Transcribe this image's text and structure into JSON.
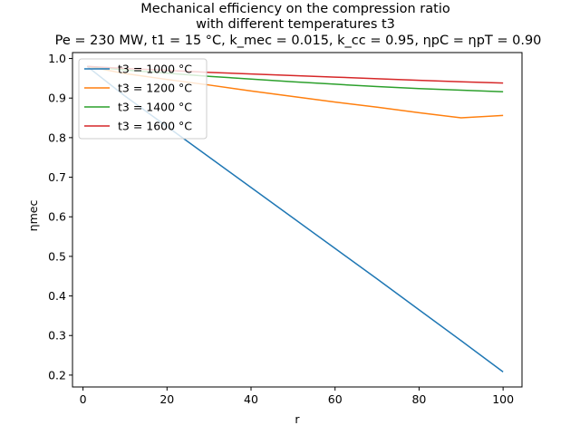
{
  "chart_data": {
    "type": "line",
    "title_lines": [
      "Mechanical efficiency on the compression ratio",
      "with different temperatures t3",
      "Pe = 230 MW, t1 = 15 °C, k_mec = 0.015, k_cc = 0.95, ηpC = ηpT = 0.90"
    ],
    "xlabel": "r",
    "ylabel": "ηmec",
    "xlim": [
      -2.5,
      104.5
    ],
    "ylim": [
      0.17,
      1.015
    ],
    "xticks": [
      0,
      20,
      40,
      60,
      80,
      100
    ],
    "yticks": [
      0.2,
      0.3,
      0.4,
      0.5,
      0.6,
      0.7,
      0.8,
      0.9,
      1.0
    ],
    "ytick_labels": [
      "0.2",
      "0.3",
      "0.4",
      "0.5",
      "0.6",
      "0.7",
      "0.8",
      "0.9",
      "1.0"
    ],
    "grid": false,
    "legend_position": "upper-left",
    "series": [
      {
        "name": "t3 = 1000 °C",
        "color": "#1f77b4",
        "x": [
          1,
          10,
          20,
          30,
          40,
          50,
          60,
          70,
          80,
          90,
          100
        ],
        "y": [
          0.98,
          0.905,
          0.828,
          0.751,
          0.674,
          0.597,
          0.52,
          0.443,
          0.365,
          0.287,
          0.208
        ]
      },
      {
        "name": "t3 = 1200 °C",
        "color": "#ff7f0e",
        "x": [
          1,
          10,
          20,
          30,
          40,
          50,
          60,
          70,
          80,
          90,
          100
        ],
        "y": [
          0.98,
          0.962,
          0.947,
          0.933,
          0.918,
          0.904,
          0.89,
          0.877,
          0.863,
          0.85,
          0.856
        ]
      },
      {
        "name": "t3 = 1400 °C",
        "color": "#2ca02c",
        "x": [
          1,
          10,
          20,
          30,
          40,
          50,
          60,
          70,
          80,
          90,
          100
        ],
        "y": [
          0.98,
          0.971,
          0.963,
          0.955,
          0.948,
          0.941,
          0.935,
          0.929,
          0.924,
          0.92,
          0.916
        ]
      },
      {
        "name": "t3 = 1600 °C",
        "color": "#d62728",
        "x": [
          1,
          10,
          20,
          30,
          40,
          50,
          60,
          70,
          80,
          90,
          100
        ],
        "y": [
          0.98,
          0.975,
          0.97,
          0.965,
          0.961,
          0.957,
          0.953,
          0.949,
          0.945,
          0.941,
          0.938
        ]
      }
    ]
  }
}
